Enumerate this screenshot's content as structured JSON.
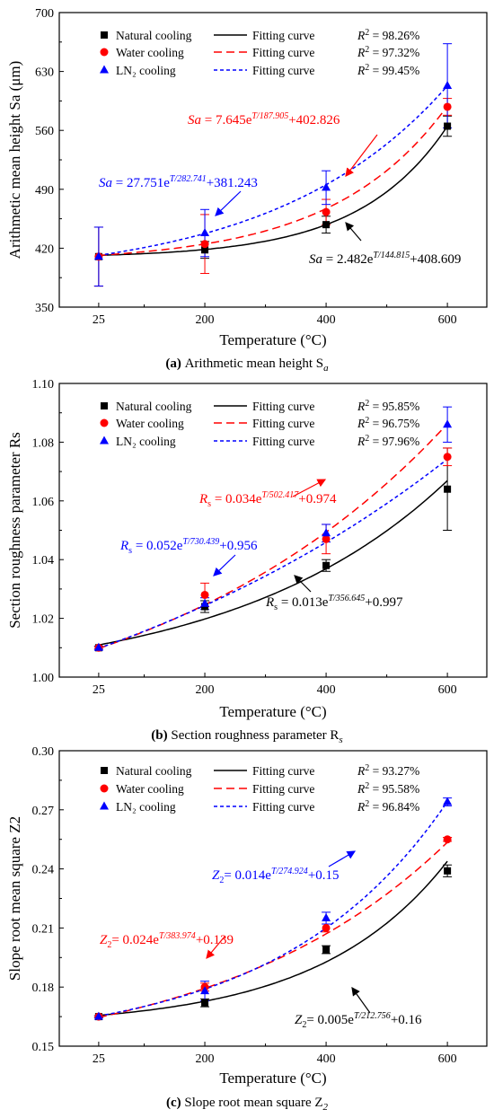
{
  "charts": [
    {
      "type": "line",
      "caption_label": "(a)",
      "caption_text": "Arithmetic mean height S",
      "caption_sub": "a",
      "ylabel": "Arithmetic mean height Sa (μm)",
      "xlabel": "Temperature (°C)",
      "x_categories": [
        "25",
        "200",
        "400",
        "600"
      ],
      "ylim": [
        350,
        700
      ],
      "yticks": [
        "350",
        "420",
        "490",
        "560",
        "630",
        "700"
      ],
      "series": [
        {
          "name": "Natural cooling",
          "color": "#000000",
          "marker": "square",
          "values": [
            410,
            418,
            448,
            565
          ],
          "errors": [
            35,
            10,
            10,
            12
          ],
          "fit_label": "Fitting curve",
          "r2": "R² = 98.26%",
          "fit_dash": "solid",
          "fit": {
            "A": 2.482,
            "T0": 144.815,
            "C": 408.609
          }
        },
        {
          "name": "Water cooling",
          "color": "#ff0000",
          "marker": "circle",
          "values": [
            410,
            425,
            463,
            588
          ],
          "errors": [
            35,
            35,
            15,
            10
          ],
          "fit_label": "Fitting curve",
          "r2": "R² = 97.32%",
          "fit_dash": "long",
          "fit": {
            "A": 7.645,
            "T0": 187.905,
            "C": 402.826
          }
        },
        {
          "name": "LN₂ cooling",
          "color": "#0000ff",
          "marker": "triangle",
          "values": [
            410,
            438,
            492,
            613
          ],
          "errors": [
            35,
            28,
            20,
            50
          ],
          "fit_label": "Fitting curve",
          "r2": "R² = 99.45%",
          "fit_dash": "short",
          "fit": {
            "A": 27.751,
            "T0": 282.741,
            "C": 381.243
          }
        }
      ],
      "equations": [
        {
          "pre": "Sa",
          "mid": " = 7.645e",
          "sup": "T/187.905",
          "post": "+402.826",
          "color": "#ff0000"
        },
        {
          "pre": "Sa",
          "mid": " = 27.751e",
          "sup": "T/282.741",
          "post": "+381.243",
          "color": "#0000ff"
        },
        {
          "pre": "Sa",
          "mid": " = 2.482e",
          "sup": "T/144.815",
          "post": "+408.609",
          "color": "#000000"
        }
      ]
    },
    {
      "type": "line",
      "caption_label": "(b)",
      "caption_text": "Section roughness parameter R",
      "caption_sub": "s",
      "ylabel": "Section roughness parameter Rs",
      "xlabel": "Temperature (°C)",
      "x_categories": [
        "25",
        "200",
        "400",
        "600"
      ],
      "ylim": [
        1.0,
        1.1
      ],
      "yticks": [
        "1.00",
        "1.02",
        "1.04",
        "1.06",
        "1.08",
        "1.10"
      ],
      "series": [
        {
          "name": "Natural cooling",
          "color": "#000000",
          "marker": "square",
          "values": [
            1.01,
            1.024,
            1.038,
            1.064
          ],
          "errors": [
            0.0005,
            0.002,
            0.002,
            0.014
          ],
          "fit_label": "Fitting curve",
          "r2": "R² = 95.85%",
          "fit_dash": "solid",
          "fit": {
            "A": 0.013,
            "T0": 356.645,
            "C": 0.997
          }
        },
        {
          "name": "Water cooling",
          "color": "#ff0000",
          "marker": "circle",
          "values": [
            1.01,
            1.028,
            1.047,
            1.075
          ],
          "errors": [
            0.0005,
            0.004,
            0.005,
            0.003
          ],
          "fit_label": "Fitting curve",
          "r2": "R² = 96.75%",
          "fit_dash": "long",
          "fit": {
            "A": 0.034,
            "T0": 502.417,
            "C": 0.974
          }
        },
        {
          "name": "LN₂ cooling",
          "color": "#0000ff",
          "marker": "triangle",
          "values": [
            1.01,
            1.025,
            1.049,
            1.086
          ],
          "errors": [
            0.0005,
            0.002,
            0.003,
            0.006
          ],
          "fit_label": "Fitting curve",
          "r2": "R² = 97.96%",
          "fit_dash": "short",
          "fit": {
            "A": 0.052,
            "T0": 730.439,
            "C": 0.956
          }
        }
      ],
      "equations": [
        {
          "pre": "R",
          "pre_sub": "s",
          "mid": " = 0.034e",
          "sup": "T/502.417",
          "post": "+0.974",
          "color": "#ff0000"
        },
        {
          "pre": "R",
          "pre_sub": "s",
          "mid": " = 0.052e",
          "sup": "T/730.439",
          "post": "+0.956",
          "color": "#0000ff"
        },
        {
          "pre": "R",
          "pre_sub": "s",
          "mid": " = 0.013e",
          "sup": "T/356.645",
          "post": "+0.997",
          "color": "#000000"
        }
      ]
    },
    {
      "type": "line",
      "caption_label": "(c)",
      "caption_text": "Slope root mean square Z",
      "caption_sub": "2",
      "ylabel": "Slope root mean square Z2",
      "xlabel": "Temperature (°C)",
      "x_categories": [
        "25",
        "200",
        "400",
        "600"
      ],
      "ylim": [
        0.15,
        0.3
      ],
      "yticks": [
        "0.15",
        "0.18",
        "0.21",
        "0.24",
        "0.27",
        "0.30"
      ],
      "series": [
        {
          "name": "Natural cooling",
          "color": "#000000",
          "marker": "square",
          "values": [
            0.165,
            0.172,
            0.199,
            0.239
          ],
          "errors": [
            0.0005,
            0.002,
            0.002,
            0.003
          ],
          "fit_label": "Fitting curve",
          "r2": "R² = 93.27%",
          "fit_dash": "solid",
          "fit": {
            "A": 0.005,
            "T0": 212.756,
            "C": 0.16
          }
        },
        {
          "name": "Water cooling",
          "color": "#ff0000",
          "marker": "circle",
          "values": [
            0.165,
            0.18,
            0.21,
            0.255
          ],
          "errors": [
            0.0005,
            0.002,
            0.002,
            0.001
          ],
          "fit_label": "Fitting curve",
          "r2": "R² = 95.58%",
          "fit_dash": "long",
          "fit": {
            "A": 0.024,
            "T0": 383.974,
            "C": 0.139
          }
        },
        {
          "name": "LN₂ cooling",
          "color": "#0000ff",
          "marker": "triangle",
          "values": [
            0.165,
            0.178,
            0.215,
            0.274
          ],
          "errors": [
            0.0005,
            0.005,
            0.003,
            0.002
          ],
          "fit_label": "Fitting curve",
          "r2": "R² = 96.84%",
          "fit_dash": "short",
          "fit": {
            "A": 0.014,
            "T0": 274.924,
            "C": 0.15
          }
        }
      ],
      "equations": [
        {
          "pre": "Z",
          "pre_sub": "2",
          "mid": "= 0.014e",
          "sup": "T/274.924",
          "post": "+0.15",
          "color": "#0000ff"
        },
        {
          "pre": "Z",
          "pre_sub": "2",
          "mid": "= 0.024e",
          "sup": "T/383.974",
          "post": "+0.139",
          "color": "#ff0000"
        },
        {
          "pre": "Z",
          "pre_sub": "2",
          "mid": "= 0.005e",
          "sup": "T/212.756",
          "post": "+0.16",
          "color": "#000000"
        }
      ]
    }
  ]
}
